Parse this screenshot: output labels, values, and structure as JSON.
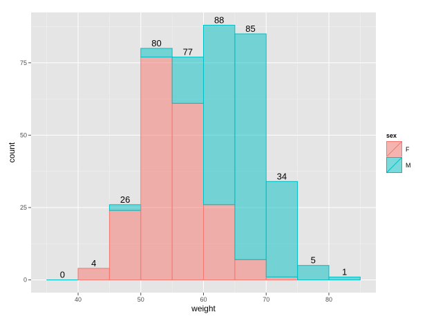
{
  "chart_data": {
    "type": "bar",
    "stacked": true,
    "bin_edges": [
      35,
      40,
      45,
      50,
      55,
      60,
      65,
      70,
      75,
      80,
      85
    ],
    "series": [
      {
        "name": "F",
        "values": [
          0,
          4,
          24,
          77,
          61,
          26,
          7,
          1,
          0,
          0
        ],
        "fill": "#f8766d",
        "stroke": "#f8766d"
      },
      {
        "name": "M",
        "values": [
          0,
          0,
          2,
          3,
          16,
          62,
          78,
          33,
          5,
          1
        ],
        "fill": "#00bfc4",
        "stroke": "#00bfc4"
      }
    ],
    "totals": [
      0,
      4,
      26,
      80,
      77,
      88,
      85,
      34,
      5,
      1
    ],
    "total_labels": [
      "0",
      "4",
      "26",
      "80",
      "77",
      "88",
      "85",
      "34",
      "5",
      "1"
    ],
    "xlabel": "weight",
    "ylabel": "count",
    "xlim": [
      32.5,
      87.5
    ],
    "ylim": [
      -4.4,
      92.4
    ],
    "x_ticks": [
      40,
      50,
      60,
      70,
      80
    ],
    "x_tick_labels": [
      "40",
      "50",
      "60",
      "70",
      "80"
    ],
    "y_ticks": [
      0,
      25,
      50,
      75
    ],
    "y_tick_labels": [
      "0",
      "25",
      "50",
      "75"
    ],
    "legend": {
      "title": "sex",
      "labels": [
        "F",
        "M"
      ],
      "position": "right"
    },
    "grid": true,
    "panel_background": "#e5e5e5"
  }
}
